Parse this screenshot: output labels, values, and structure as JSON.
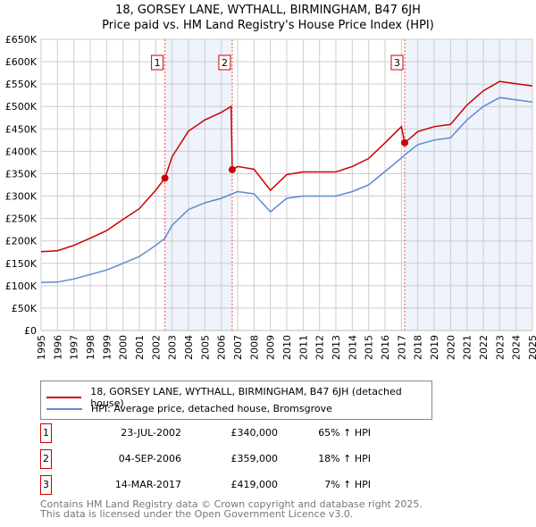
{
  "title": "18, GORSEY LANE, WYTHALL, BIRMINGHAM, B47 6JH",
  "subtitle": "Price paid vs. HM Land Registry's House Price Index (HPI)",
  "chart_data": {
    "type": "line",
    "title": "18, GORSEY LANE, WYTHALL, BIRMINGHAM, B47 6JH",
    "subtitle": "Price paid vs. HM Land Registry's House Price Index (HPI)",
    "xlim": [
      1995,
      2025
    ],
    "ylim": [
      0,
      650000
    ],
    "x_ticks": [
      "1995",
      "1996",
      "1997",
      "1998",
      "1999",
      "2000",
      "2001",
      "2002",
      "2003",
      "2004",
      "2005",
      "2006",
      "2007",
      "2008",
      "2009",
      "2010",
      "2011",
      "2012",
      "2013",
      "2014",
      "2015",
      "2016",
      "2017",
      "2018",
      "2019",
      "2020",
      "2021",
      "2022",
      "2023",
      "2024",
      "2025"
    ],
    "y_ticks": [
      {
        "value": 0,
        "label": "£0"
      },
      {
        "value": 50000,
        "label": "£50K"
      },
      {
        "value": 100000,
        "label": "£100K"
      },
      {
        "value": 150000,
        "label": "£150K"
      },
      {
        "value": 200000,
        "label": "£200K"
      },
      {
        "value": 250000,
        "label": "£250K"
      },
      {
        "value": 300000,
        "label": "£300K"
      },
      {
        "value": 350000,
        "label": "£350K"
      },
      {
        "value": 400000,
        "label": "£400K"
      },
      {
        "value": 450000,
        "label": "£450K"
      },
      {
        "value": 500000,
        "label": "£500K"
      },
      {
        "value": 550000,
        "label": "£550K"
      },
      {
        "value": 600000,
        "label": "£600K"
      },
      {
        "value": 650000,
        "label": "£650K"
      }
    ],
    "grid": true,
    "series": [
      {
        "name": "18, GORSEY LANE, WYTHALL, BIRMINGHAM, B47 6JH (detached house)",
        "color": "#cc0000",
        "x": [
          1995,
          1996,
          1997,
          1998,
          1999,
          2000,
          2001,
          2002,
          2002.56,
          2003,
          2004,
          2005,
          2006,
          2006.6,
          2006.67,
          2007,
          2008,
          2009,
          2010,
          2011,
          2012,
          2013,
          2014,
          2015,
          2016,
          2017,
          2017.2,
          2018,
          2019,
          2020,
          2021,
          2022,
          2023,
          2024,
          2025
        ],
        "y": [
          176000,
          178000,
          190000,
          206000,
          223000,
          248000,
          272000,
          313000,
          340000,
          388000,
          445000,
          470000,
          487000,
          500000,
          359000,
          366000,
          360000,
          313000,
          348000,
          354000,
          354000,
          354000,
          366000,
          384000,
          419000,
          455000,
          419000,
          444000,
          455000,
          460000,
          503000,
          535000,
          556000,
          551000,
          546000
        ]
      },
      {
        "name": "HPI: Average price, detached house, Bromsgrove",
        "color": "#5b8bd0",
        "x": [
          1995,
          1996,
          1997,
          1998,
          1999,
          2000,
          2001,
          2002,
          2002.56,
          2003,
          2004,
          2005,
          2006,
          2006.67,
          2007,
          2008,
          2009,
          2010,
          2011,
          2012,
          2013,
          2014,
          2015,
          2016,
          2017,
          2017.2,
          2018,
          2019,
          2020,
          2021,
          2022,
          2023,
          2024,
          2025
        ],
        "y": [
          107000,
          108000,
          115000,
          125000,
          135000,
          150000,
          165000,
          190000,
          206000,
          235000,
          270000,
          285000,
          295000,
          305000,
          310000,
          305000,
          265000,
          295000,
          300000,
          300000,
          300000,
          310000,
          325000,
          355000,
          385000,
          392000,
          415000,
          425000,
          430000,
          470000,
          500000,
          520000,
          515000,
          510000
        ]
      }
    ],
    "sales": [
      {
        "label": "1",
        "x": 2002.56,
        "y": 340000,
        "date": "23-JUL-2002",
        "price": "£340,000",
        "hpi": "65% ↑ HPI"
      },
      {
        "label": "2",
        "x": 2006.67,
        "y": 359000,
        "date": "04-SEP-2006",
        "price": "£359,000",
        "hpi": "18% ↑ HPI"
      },
      {
        "label": "3",
        "x": 2017.2,
        "y": 419000,
        "date": "14-MAR-2017",
        "price": "£419,000",
        "hpi": "7% ↑ HPI"
      }
    ],
    "shaded_ranges": [
      [
        2002.56,
        2006.67
      ],
      [
        2017.2,
        2025
      ]
    ],
    "legend_placement": "below"
  },
  "legend": {
    "red_label": "18, GORSEY LANE, WYTHALL, BIRMINGHAM, B47 6JH (detached house)",
    "blue_label": "HPI: Average price, detached house, Bromsgrove"
  },
  "footer": {
    "line1": "Contains HM Land Registry data © Crown copyright and database right 2025.",
    "line2": "This data is licensed under the Open Government Licence v3.0."
  }
}
